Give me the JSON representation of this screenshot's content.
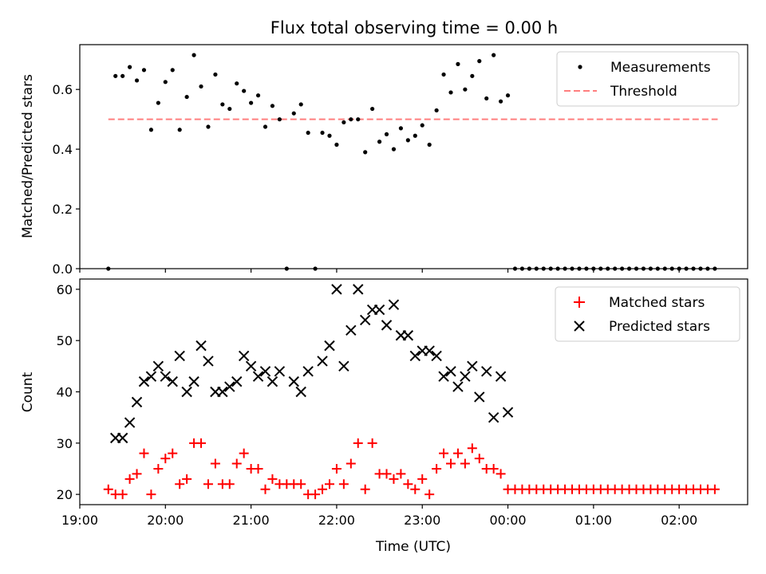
{
  "figure": {
    "title": "Flux total observing time = 0.00 h"
  },
  "chart_data": [
    {
      "type": "scatter",
      "panel": "top",
      "ylabel": "Matched/Predicted stars",
      "xlabel": "",
      "xlim": [
        "19:00",
        "02:48"
      ],
      "ylim": [
        0,
        0.75
      ],
      "yticks": [
        "0.0",
        "0.2",
        "0.4",
        "0.6"
      ],
      "legend_placement": "top-right",
      "legend": [
        "Measurements",
        "Threshold"
      ],
      "colors": {
        "measurements": "#000000",
        "threshold": "#ff7f7f"
      },
      "threshold": {
        "value": 0.5,
        "from": "19:20",
        "to": "02:27"
      },
      "measurements": [
        [
          "19:20",
          0.0
        ],
        [
          "19:25",
          0.645
        ],
        [
          "19:30",
          0.645
        ],
        [
          "19:35",
          0.675
        ],
        [
          "19:40",
          0.63
        ],
        [
          "19:45",
          0.665
        ],
        [
          "19:50",
          0.465
        ],
        [
          "19:55",
          0.555
        ],
        [
          "20:00",
          0.625
        ],
        [
          "20:05",
          0.665
        ],
        [
          "20:10",
          0.465
        ],
        [
          "20:15",
          0.575
        ],
        [
          "20:20",
          0.715
        ],
        [
          "20:25",
          0.61
        ],
        [
          "20:30",
          0.475
        ],
        [
          "20:35",
          0.65
        ],
        [
          "20:40",
          0.55
        ],
        [
          "20:45",
          0.535
        ],
        [
          "20:50",
          0.62
        ],
        [
          "20:55",
          0.595
        ],
        [
          "21:00",
          0.555
        ],
        [
          "21:05",
          0.58
        ],
        [
          "21:10",
          0.475
        ],
        [
          "21:15",
          0.545
        ],
        [
          "21:20",
          0.5
        ],
        [
          "21:25",
          0.0
        ],
        [
          "21:30",
          0.52
        ],
        [
          "21:35",
          0.55
        ],
        [
          "21:40",
          0.455
        ],
        [
          "21:45",
          0.0
        ],
        [
          "21:50",
          0.455
        ],
        [
          "21:55",
          0.445
        ],
        [
          "22:00",
          0.415
        ],
        [
          "22:05",
          0.49
        ],
        [
          "22:10",
          0.5
        ],
        [
          "22:15",
          0.5
        ],
        [
          "22:20",
          0.39
        ],
        [
          "22:25",
          0.535
        ],
        [
          "22:30",
          0.425
        ],
        [
          "22:35",
          0.45
        ],
        [
          "22:40",
          0.4
        ],
        [
          "22:45",
          0.47
        ],
        [
          "22:50",
          0.43
        ],
        [
          "22:55",
          0.445
        ],
        [
          "23:00",
          0.48
        ],
        [
          "23:05",
          0.415
        ],
        [
          "23:10",
          0.53
        ],
        [
          "23:15",
          0.65
        ],
        [
          "23:20",
          0.59
        ],
        [
          "23:25",
          0.685
        ],
        [
          "23:30",
          0.6
        ],
        [
          "23:35",
          0.645
        ],
        [
          "23:40",
          0.695
        ],
        [
          "23:45",
          0.57
        ],
        [
          "23:50",
          0.715
        ],
        [
          "23:55",
          0.56
        ],
        [
          "00:00",
          0.58
        ],
        [
          "00:05",
          0.0
        ],
        [
          "00:10",
          0.0
        ],
        [
          "00:15",
          0.0
        ],
        [
          "00:20",
          0.0
        ],
        [
          "00:25",
          0.0
        ],
        [
          "00:30",
          0.0
        ],
        [
          "00:35",
          0.0
        ],
        [
          "00:40",
          0.0
        ],
        [
          "00:45",
          0.0
        ],
        [
          "00:50",
          0.0
        ],
        [
          "00:55",
          0.0
        ],
        [
          "01:00",
          0.0
        ],
        [
          "01:05",
          0.0
        ],
        [
          "01:10",
          0.0
        ],
        [
          "01:15",
          0.0
        ],
        [
          "01:20",
          0.0
        ],
        [
          "01:25",
          0.0
        ],
        [
          "01:30",
          0.0
        ],
        [
          "01:35",
          0.0
        ],
        [
          "01:40",
          0.0
        ],
        [
          "01:45",
          0.0
        ],
        [
          "01:50",
          0.0
        ],
        [
          "01:55",
          0.0
        ],
        [
          "02:00",
          0.0
        ],
        [
          "02:05",
          0.0
        ],
        [
          "02:10",
          0.0
        ],
        [
          "02:15",
          0.0
        ],
        [
          "02:20",
          0.0
        ],
        [
          "02:25",
          0.0
        ]
      ]
    },
    {
      "type": "scatter",
      "panel": "bottom",
      "xlabel": "Time (UTC)",
      "ylabel": "Count",
      "xlim": [
        "19:00",
        "02:48"
      ],
      "ylim": [
        18,
        62
      ],
      "xticks": [
        "19:00",
        "20:00",
        "21:00",
        "22:00",
        "23:00",
        "00:00",
        "01:00",
        "02:00"
      ],
      "yticks": [
        "20",
        "30",
        "40",
        "50",
        "60"
      ],
      "legend_placement": "top-right",
      "legend": [
        "Matched stars",
        "Predicted stars"
      ],
      "colors": {
        "matched": "#ff0000",
        "predicted": "#000000"
      },
      "matched": [
        [
          "19:20",
          21
        ],
        [
          "19:25",
          20
        ],
        [
          "19:30",
          20
        ],
        [
          "19:35",
          23
        ],
        [
          "19:40",
          24
        ],
        [
          "19:45",
          28
        ],
        [
          "19:50",
          20
        ],
        [
          "19:55",
          25
        ],
        [
          "20:00",
          27
        ],
        [
          "20:05",
          28
        ],
        [
          "20:10",
          22
        ],
        [
          "20:15",
          23
        ],
        [
          "20:20",
          30
        ],
        [
          "20:25",
          30
        ],
        [
          "20:30",
          22
        ],
        [
          "20:35",
          26
        ],
        [
          "20:40",
          22
        ],
        [
          "20:45",
          22
        ],
        [
          "20:50",
          26
        ],
        [
          "20:55",
          28
        ],
        [
          "21:00",
          25
        ],
        [
          "21:05",
          25
        ],
        [
          "21:10",
          21
        ],
        [
          "21:15",
          23
        ],
        [
          "21:20",
          22
        ],
        [
          "21:25",
          22
        ],
        [
          "21:30",
          22
        ],
        [
          "21:35",
          22
        ],
        [
          "21:40",
          20
        ],
        [
          "21:45",
          20
        ],
        [
          "21:50",
          21
        ],
        [
          "21:55",
          22
        ],
        [
          "22:00",
          25
        ],
        [
          "22:05",
          22
        ],
        [
          "22:10",
          26
        ],
        [
          "22:15",
          30
        ],
        [
          "22:20",
          21
        ],
        [
          "22:25",
          30
        ],
        [
          "22:30",
          24
        ],
        [
          "22:35",
          24
        ],
        [
          "22:40",
          23
        ],
        [
          "22:45",
          24
        ],
        [
          "22:50",
          22
        ],
        [
          "22:55",
          21
        ],
        [
          "23:00",
          23
        ],
        [
          "23:05",
          20
        ],
        [
          "23:10",
          25
        ],
        [
          "23:15",
          28
        ],
        [
          "23:20",
          26
        ],
        [
          "23:25",
          28
        ],
        [
          "23:30",
          26
        ],
        [
          "23:35",
          29
        ],
        [
          "23:40",
          27
        ],
        [
          "23:45",
          25
        ],
        [
          "23:50",
          25
        ],
        [
          "23:55",
          24
        ],
        [
          "00:00",
          21
        ],
        [
          "00:05",
          21
        ],
        [
          "00:10",
          21
        ],
        [
          "00:15",
          21
        ],
        [
          "00:20",
          21
        ],
        [
          "00:25",
          21
        ],
        [
          "00:30",
          21
        ],
        [
          "00:35",
          21
        ],
        [
          "00:40",
          21
        ],
        [
          "00:45",
          21
        ],
        [
          "00:50",
          21
        ],
        [
          "00:55",
          21
        ],
        [
          "01:00",
          21
        ],
        [
          "01:05",
          21
        ],
        [
          "01:10",
          21
        ],
        [
          "01:15",
          21
        ],
        [
          "01:20",
          21
        ],
        [
          "01:25",
          21
        ],
        [
          "01:30",
          21
        ],
        [
          "01:35",
          21
        ],
        [
          "01:40",
          21
        ],
        [
          "01:45",
          21
        ],
        [
          "01:50",
          21
        ],
        [
          "01:55",
          21
        ],
        [
          "02:00",
          21
        ],
        [
          "02:05",
          21
        ],
        [
          "02:10",
          21
        ],
        [
          "02:15",
          21
        ],
        [
          "02:20",
          21
        ],
        [
          "02:25",
          21
        ]
      ],
      "predicted": [
        [
          "19:25",
          31
        ],
        [
          "19:30",
          31
        ],
        [
          "19:35",
          34
        ],
        [
          "19:40",
          38
        ],
        [
          "19:45",
          42
        ],
        [
          "19:50",
          43
        ],
        [
          "19:55",
          45
        ],
        [
          "20:00",
          43
        ],
        [
          "20:05",
          42
        ],
        [
          "20:10",
          47
        ],
        [
          "20:15",
          40
        ],
        [
          "20:20",
          42
        ],
        [
          "20:25",
          49
        ],
        [
          "20:30",
          46
        ],
        [
          "20:35",
          40
        ],
        [
          "20:40",
          40
        ],
        [
          "20:45",
          41
        ],
        [
          "20:50",
          42
        ],
        [
          "20:55",
          47
        ],
        [
          "21:00",
          45
        ],
        [
          "21:05",
          43
        ],
        [
          "21:10",
          44
        ],
        [
          "21:15",
          42
        ],
        [
          "21:20",
          44
        ],
        [
          "21:30",
          42
        ],
        [
          "21:35",
          40
        ],
        [
          "21:40",
          44
        ],
        [
          "21:50",
          46
        ],
        [
          "21:55",
          49
        ],
        [
          "22:00",
          60
        ],
        [
          "22:05",
          45
        ],
        [
          "22:10",
          52
        ],
        [
          "22:15",
          60
        ],
        [
          "22:20",
          54
        ],
        [
          "22:25",
          56
        ],
        [
          "22:30",
          56
        ],
        [
          "22:35",
          53
        ],
        [
          "22:40",
          57
        ],
        [
          "22:45",
          51
        ],
        [
          "22:50",
          51
        ],
        [
          "22:55",
          47
        ],
        [
          "23:00",
          48
        ],
        [
          "23:05",
          48
        ],
        [
          "23:10",
          47
        ],
        [
          "23:15",
          43
        ],
        [
          "23:20",
          44
        ],
        [
          "23:25",
          41
        ],
        [
          "23:30",
          43
        ],
        [
          "23:35",
          45
        ],
        [
          "23:40",
          39
        ],
        [
          "23:45",
          44
        ],
        [
          "23:50",
          35
        ],
        [
          "23:55",
          43
        ],
        [
          "00:00",
          36
        ]
      ]
    }
  ]
}
